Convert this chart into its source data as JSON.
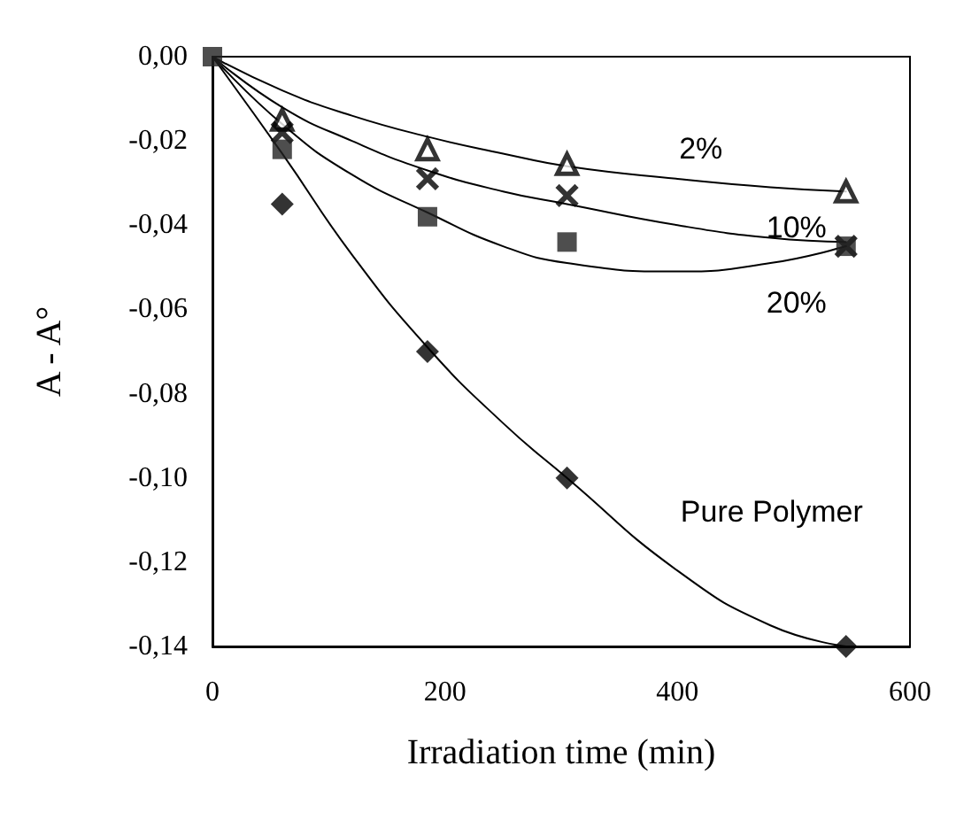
{
  "chart_data": {
    "type": "scatter",
    "xlabel": "Irradiation time (min)",
    "ylabel": "A - A°",
    "xlim": [
      0,
      600
    ],
    "xticks": [
      0,
      200,
      400,
      600
    ],
    "ylim": [
      -0.14,
      0
    ],
    "yticks": [
      {
        "value": 0,
        "label": "0,00"
      },
      {
        "value": -0.02,
        "label": "-0,02"
      },
      {
        "value": -0.04,
        "label": "-0,04"
      },
      {
        "value": -0.06,
        "label": "-0,06"
      },
      {
        "value": -0.08,
        "label": "-0,08"
      },
      {
        "value": -0.1,
        "label": "-0,10"
      },
      {
        "value": -0.12,
        "label": "-0,12"
      },
      {
        "value": -0.14,
        "label": "-0,14"
      }
    ],
    "grid": false,
    "series": [
      {
        "marker": "triangle",
        "color": "#000000",
        "x": [
          60,
          185,
          305,
          545
        ],
        "values": [
          -0.015,
          -0.022,
          -0.0255,
          -0.032
        ]
      },
      {
        "marker": "cross",
        "color": "#000000",
        "x": [
          60,
          185,
          305,
          545
        ],
        "values": [
          -0.018,
          -0.029,
          -0.033,
          -0.045
        ]
      },
      {
        "marker": "square",
        "color": "#222222",
        "x": [
          0,
          60,
          185,
          305,
          545
        ],
        "values": [
          0,
          -0.022,
          -0.038,
          -0.044,
          -0.045
        ]
      },
      {
        "marker": "diamond",
        "color": "#000000",
        "x": [
          60,
          185,
          305,
          545
        ],
        "values": [
          -0.035,
          -0.07,
          -0.1,
          -0.14
        ]
      },
      {
        "type": "line",
        "name": "2%",
        "marker": "none",
        "line_style": "solid",
        "color": "#000000",
        "x": [
          0,
          60,
          120,
          185,
          250,
          305,
          400,
          480,
          545
        ],
        "values": [
          0,
          -0.008,
          -0.014,
          -0.019,
          -0.023,
          -0.026,
          -0.029,
          -0.031,
          -0.032
        ]
      },
      {
        "type": "line",
        "name": "10%",
        "marker": "none",
        "line_style": "solid",
        "color": "#000000",
        "x": [
          0,
          60,
          120,
          185,
          250,
          305,
          400,
          480,
          545
        ],
        "values": [
          0,
          -0.012,
          -0.02,
          -0.027,
          -0.032,
          -0.035,
          -0.04,
          -0.043,
          -0.044
        ]
      },
      {
        "type": "line",
        "name": "20%",
        "marker": "none",
        "line_style": "solid",
        "color": "#000000",
        "x": [
          0,
          60,
          120,
          185,
          250,
          305,
          400,
          480,
          545
        ],
        "values": [
          0,
          -0.016,
          -0.028,
          -0.037,
          -0.045,
          -0.049,
          -0.051,
          -0.049,
          -0.045
        ]
      },
      {
        "type": "line",
        "name": "Pure Polymer",
        "marker": "none",
        "line_style": "solid",
        "color": "#000000",
        "x": [
          0,
          60,
          120,
          185,
          250,
          305,
          400,
          480,
          545
        ],
        "values": [
          0,
          -0.023,
          -0.047,
          -0.069,
          -0.087,
          -0.1,
          -0.122,
          -0.135,
          -0.14
        ]
      }
    ]
  }
}
